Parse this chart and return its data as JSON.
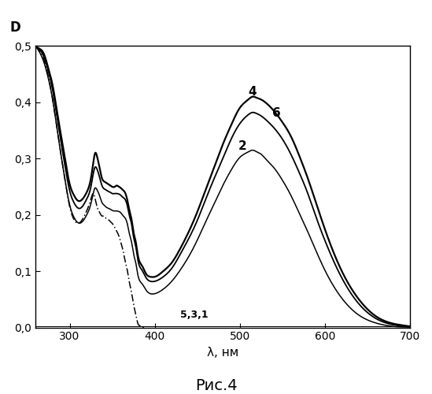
{
  "title": "Рис.4",
  "ylabel": "D",
  "xlabel": "λ, нм",
  "xlim": [
    260,
    700
  ],
  "ylim": [
    0.0,
    0.5
  ],
  "yticks": [
    0.0,
    0.1,
    0.2,
    0.3,
    0.4,
    0.5
  ],
  "ytick_labels": [
    "0,0",
    "0,1",
    "0,2",
    "0,3",
    "0,4",
    "0,5"
  ],
  "xticks": [
    300,
    400,
    500,
    600,
    700
  ],
  "background_color": "#ffffff",
  "curve2_label": "2",
  "curve4_label": "4",
  "curve6_label": "6",
  "curve531_label": "5,3,1",
  "curve2_color": "#000000",
  "curve4_color": "#000000",
  "curve6_color": "#000000",
  "curve_dash_color": "#000000",
  "curve2_lw": 1.1,
  "curve4_lw": 1.6,
  "curve6_lw": 1.3,
  "curve_dash_lw": 1.1,
  "curve531_lw": 0.7,
  "x4_pts": [
    260,
    265,
    270,
    275,
    280,
    285,
    290,
    295,
    300,
    305,
    310,
    315,
    320,
    325,
    328,
    330,
    332,
    335,
    338,
    340,
    342,
    345,
    348,
    350,
    353,
    355,
    358,
    360,
    362,
    365,
    368,
    370,
    373,
    375,
    378,
    380,
    385,
    390,
    395,
    400,
    410,
    420,
    430,
    440,
    450,
    460,
    470,
    480,
    490,
    500,
    510,
    515,
    520,
    525,
    530,
    540,
    550,
    560,
    570,
    580,
    590,
    600,
    620,
    640,
    660,
    680,
    700
  ],
  "y4_pts": [
    0.5,
    0.495,
    0.485,
    0.46,
    0.43,
    0.385,
    0.34,
    0.295,
    0.255,
    0.235,
    0.225,
    0.228,
    0.24,
    0.265,
    0.295,
    0.31,
    0.305,
    0.285,
    0.265,
    0.26,
    0.258,
    0.255,
    0.252,
    0.25,
    0.25,
    0.252,
    0.25,
    0.248,
    0.245,
    0.24,
    0.225,
    0.21,
    0.19,
    0.17,
    0.15,
    0.13,
    0.11,
    0.095,
    0.09,
    0.09,
    0.1,
    0.115,
    0.14,
    0.17,
    0.205,
    0.245,
    0.285,
    0.325,
    0.36,
    0.39,
    0.405,
    0.41,
    0.408,
    0.405,
    0.4,
    0.385,
    0.365,
    0.34,
    0.305,
    0.265,
    0.22,
    0.175,
    0.1,
    0.05,
    0.02,
    0.007,
    0.002
  ],
  "x6_pts": [
    260,
    265,
    270,
    275,
    280,
    285,
    290,
    295,
    300,
    305,
    310,
    315,
    320,
    325,
    328,
    330,
    332,
    335,
    338,
    340,
    342,
    345,
    348,
    350,
    353,
    355,
    358,
    360,
    362,
    365,
    368,
    370,
    373,
    375,
    378,
    380,
    385,
    390,
    395,
    400,
    410,
    420,
    430,
    440,
    450,
    460,
    470,
    480,
    490,
    500,
    510,
    515,
    520,
    525,
    530,
    540,
    550,
    560,
    570,
    580,
    590,
    600,
    620,
    640,
    660,
    680,
    700
  ],
  "y6_pts": [
    0.5,
    0.493,
    0.48,
    0.455,
    0.422,
    0.375,
    0.328,
    0.283,
    0.243,
    0.222,
    0.212,
    0.215,
    0.228,
    0.25,
    0.275,
    0.285,
    0.282,
    0.268,
    0.252,
    0.247,
    0.245,
    0.242,
    0.24,
    0.238,
    0.238,
    0.238,
    0.237,
    0.235,
    0.232,
    0.228,
    0.215,
    0.2,
    0.182,
    0.162,
    0.142,
    0.122,
    0.102,
    0.088,
    0.082,
    0.082,
    0.09,
    0.105,
    0.13,
    0.158,
    0.19,
    0.228,
    0.265,
    0.3,
    0.335,
    0.362,
    0.378,
    0.382,
    0.38,
    0.376,
    0.37,
    0.355,
    0.335,
    0.308,
    0.275,
    0.238,
    0.195,
    0.155,
    0.088,
    0.042,
    0.016,
    0.005,
    0.001
  ],
  "x2_pts": [
    260,
    265,
    270,
    275,
    280,
    285,
    290,
    295,
    300,
    305,
    310,
    315,
    320,
    325,
    328,
    330,
    332,
    335,
    338,
    340,
    342,
    345,
    348,
    350,
    353,
    355,
    358,
    360,
    362,
    365,
    368,
    370,
    373,
    375,
    378,
    380,
    385,
    390,
    395,
    400,
    410,
    420,
    430,
    440,
    450,
    460,
    470,
    480,
    490,
    500,
    510,
    515,
    520,
    525,
    530,
    540,
    550,
    560,
    570,
    580,
    590,
    600,
    620,
    640,
    660,
    680,
    700
  ],
  "y2_pts": [
    0.5,
    0.488,
    0.47,
    0.442,
    0.405,
    0.355,
    0.305,
    0.258,
    0.218,
    0.196,
    0.186,
    0.188,
    0.2,
    0.22,
    0.24,
    0.248,
    0.245,
    0.235,
    0.222,
    0.218,
    0.215,
    0.212,
    0.21,
    0.208,
    0.207,
    0.207,
    0.206,
    0.204,
    0.2,
    0.195,
    0.183,
    0.168,
    0.15,
    0.132,
    0.113,
    0.095,
    0.078,
    0.066,
    0.06,
    0.06,
    0.068,
    0.082,
    0.102,
    0.126,
    0.155,
    0.188,
    0.22,
    0.252,
    0.28,
    0.302,
    0.312,
    0.315,
    0.312,
    0.308,
    0.3,
    0.284,
    0.262,
    0.235,
    0.203,
    0.17,
    0.135,
    0.102,
    0.052,
    0.022,
    0.008,
    0.002,
    0.001
  ],
  "xd_pts": [
    260,
    265,
    270,
    275,
    280,
    285,
    290,
    295,
    300,
    305,
    310,
    315,
    320,
    325,
    328,
    330,
    332,
    335,
    338,
    340,
    342,
    345,
    348,
    350,
    355,
    358,
    360,
    363,
    365,
    368,
    370,
    373,
    375,
    378,
    380,
    383,
    385,
    388,
    390
  ],
  "yd_pts": [
    0.5,
    0.49,
    0.475,
    0.445,
    0.405,
    0.355,
    0.305,
    0.258,
    0.215,
    0.192,
    0.185,
    0.192,
    0.207,
    0.228,
    0.238,
    0.228,
    0.215,
    0.205,
    0.198,
    0.198,
    0.195,
    0.192,
    0.188,
    0.185,
    0.172,
    0.162,
    0.152,
    0.135,
    0.12,
    0.1,
    0.082,
    0.06,
    0.042,
    0.022,
    0.008,
    0.003,
    0.001,
    0.0005,
    0.0002
  ]
}
